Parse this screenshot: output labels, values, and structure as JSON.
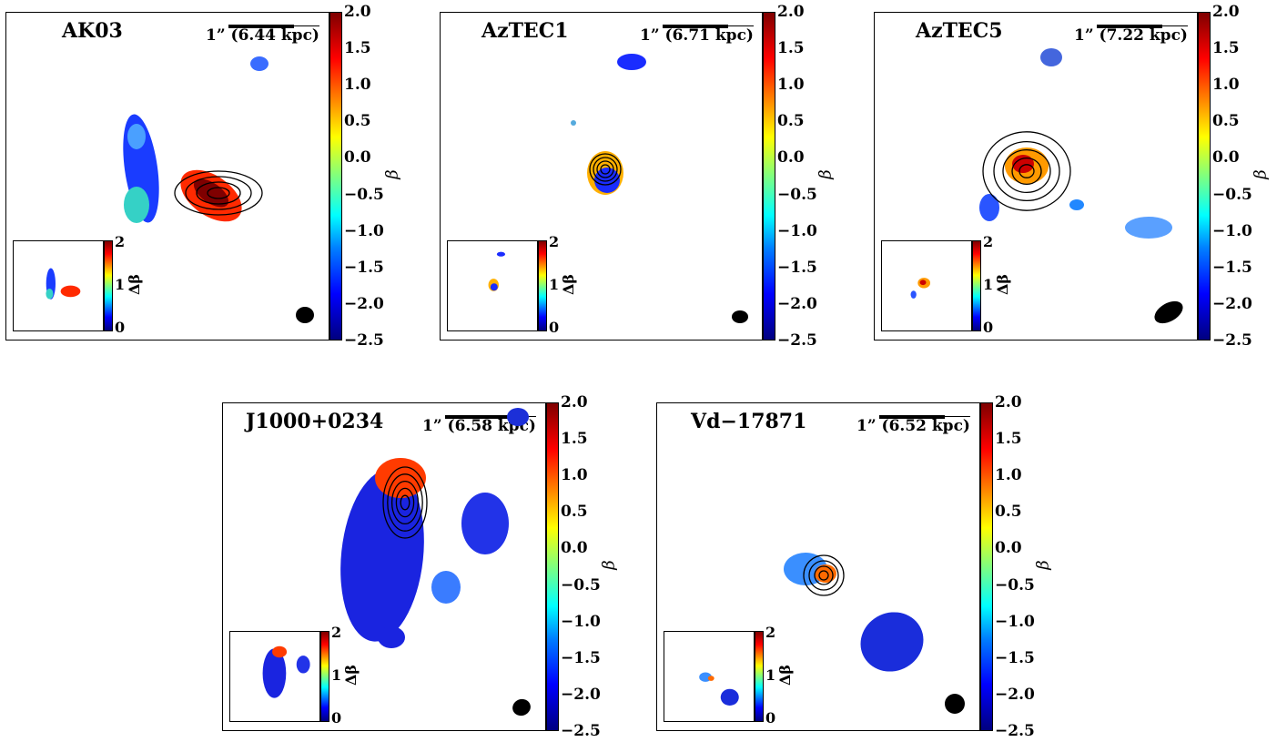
{
  "figure": {
    "colorbar_label": "β",
    "inset_colorbar_label": "Δβ",
    "colorbar_ticks": [
      "2.0",
      "1.5",
      "1.0",
      "0.5",
      "0.0",
      "−0.5",
      "−1.0",
      "−1.5",
      "−2.0",
      "−2.5"
    ],
    "inset_colorbar_ticks": [
      "2",
      "1",
      "0"
    ],
    "colors": {
      "frame": "#000000",
      "contour": "#000000",
      "beam": "#000000"
    }
  },
  "panels": [
    {
      "id": "ak03",
      "title": "AK03",
      "scale_arcsec": "1”",
      "scale_kpc": "(6.44 kpc)"
    },
    {
      "id": "aztec1",
      "title": "AzTEC1",
      "scale_arcsec": "1”",
      "scale_kpc": "(6.71 kpc)"
    },
    {
      "id": "aztec5",
      "title": "AzTEC5",
      "scale_arcsec": "1”",
      "scale_kpc": "(7.22 kpc)"
    },
    {
      "id": "j1000",
      "title": "J1000+0234",
      "scale_arcsec": "1”",
      "scale_kpc": "(6.58 kpc)"
    },
    {
      "id": "vd17871",
      "title": "Vd−17871",
      "scale_arcsec": "1”",
      "scale_kpc": "(6.52 kpc)"
    }
  ]
}
